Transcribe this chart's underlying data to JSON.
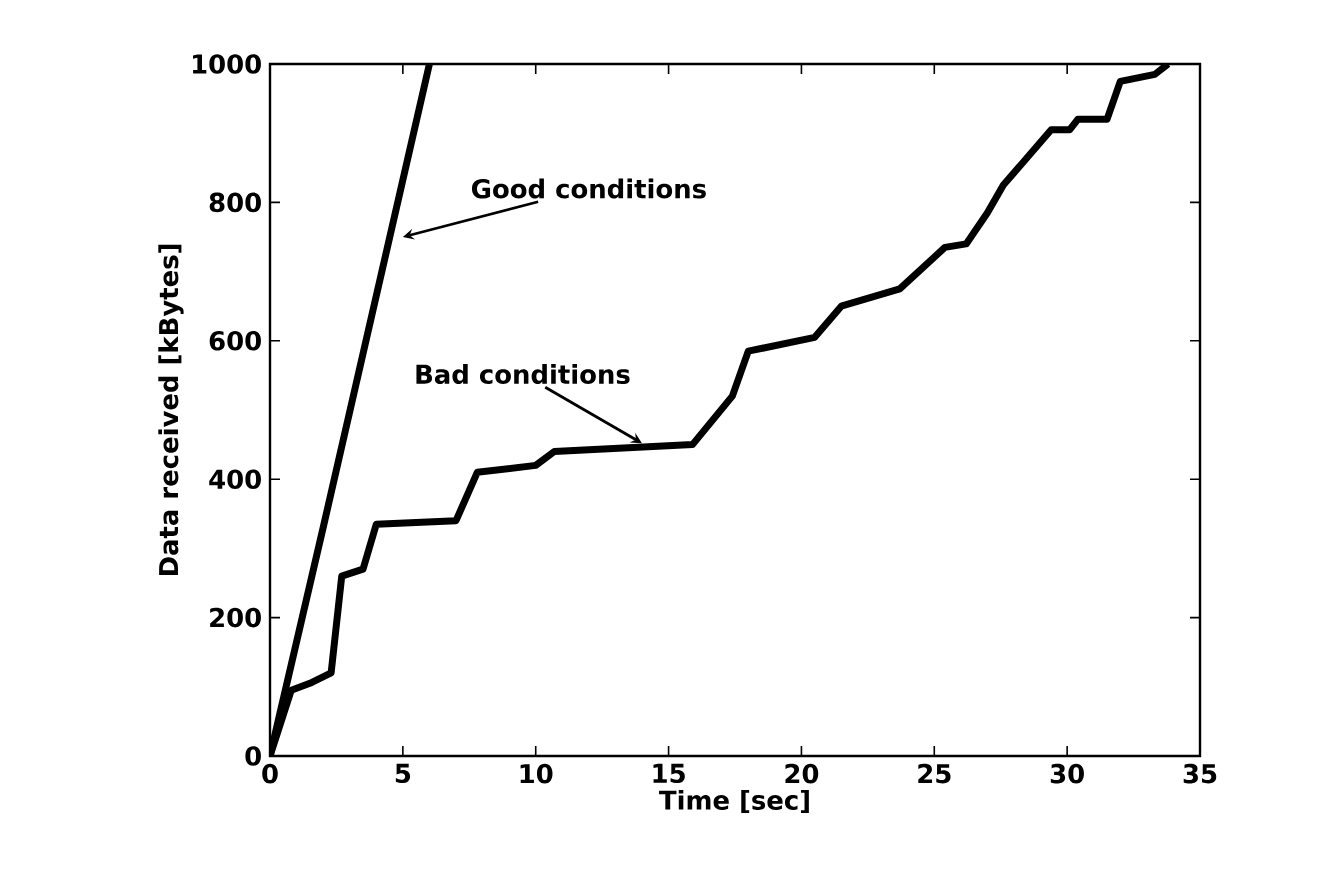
{
  "chart_data": {
    "type": "line",
    "xlabel": "Time [sec]",
    "ylabel": "Data received [kBytes]",
    "xlim": [
      0,
      35
    ],
    "xticks": [
      0,
      5,
      10,
      15,
      20,
      25,
      30,
      35
    ],
    "ylim": [
      0,
      1000
    ],
    "yticks": [
      0,
      200,
      400,
      600,
      800,
      1000
    ],
    "grid": false,
    "marker": "none",
    "line_style": "solid",
    "series": [
      {
        "color": "#000000",
        "x": [
          0,
          2,
          4,
          6
        ],
        "values": [
          0,
          330,
          665,
          1000
        ]
      },
      {
        "color": "#000000",
        "x": [
          0,
          0.8,
          1.5,
          2.3,
          2.7,
          3.5,
          4.0,
          7.0,
          7.8,
          10.0,
          10.7,
          15.9,
          17.4,
          18.0,
          20.5,
          21.5,
          23.7,
          25.4,
          26.2,
          27,
          27.6,
          29.4,
          30.1,
          30.4,
          31.5,
          32,
          33.3,
          33.8
        ],
        "values": [
          0,
          95,
          105,
          120,
          260,
          270,
          335,
          340,
          410,
          420,
          440,
          450,
          520,
          585,
          605,
          650,
          675,
          735,
          740,
          785,
          825,
          905,
          905,
          920,
          920,
          975,
          985,
          1000
        ]
      }
    ],
    "annotations": [
      {
        "text": "Good conditions",
        "x": 5,
        "y": 750
      },
      {
        "text": "Bad conditions",
        "x": 14,
        "y": 452
      }
    ]
  }
}
